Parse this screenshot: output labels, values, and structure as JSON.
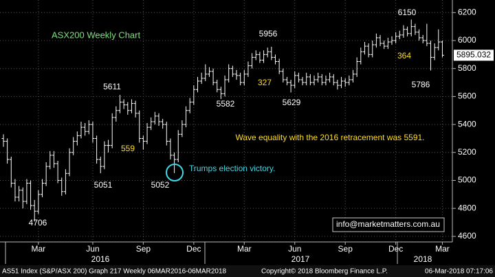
{
  "chart_data": {
    "type": "ohlc",
    "title": "ASX200 Weekly Chart",
    "color": "#ffffff",
    "ylim": [
      4560,
      6290
    ],
    "yticks": [
      4600,
      4800,
      5000,
      5200,
      5400,
      5600,
      5800,
      6000,
      6200
    ],
    "grid": true,
    "categories": [
      null,
      null,
      null,
      null,
      null,
      null,
      null,
      null,
      null,
      "Mar",
      null,
      null,
      null,
      null,
      null,
      null,
      null,
      null,
      null,
      null,
      null,
      null,
      null,
      "Jun",
      null,
      null,
      null,
      null,
      null,
      null,
      null,
      null,
      null,
      null,
      null,
      null,
      "Sep",
      null,
      null,
      null,
      null,
      null,
      null,
      null,
      null,
      null,
      null,
      null,
      null,
      "Dec",
      null,
      null,
      null,
      null,
      null,
      null,
      null,
      null,
      null,
      null,
      null,
      null,
      "Mar",
      null,
      null,
      null,
      null,
      null,
      null,
      null,
      null,
      null,
      null,
      null,
      null,
      "Jun",
      null,
      null,
      null,
      null,
      null,
      null,
      null,
      null,
      null,
      null,
      null,
      null,
      "Sep",
      null,
      null,
      null,
      null,
      null,
      null,
      null,
      null,
      null,
      null,
      null,
      null,
      "Dec",
      null,
      null,
      null,
      null,
      null,
      null,
      null,
      null,
      null,
      null,
      null,
      "Mar"
    ],
    "years": [
      "2016",
      "2017",
      "2018"
    ],
    "ohlc": [
      [
        5300,
        5330,
        5240,
        5280
      ],
      [
        5280,
        5300,
        5120,
        5150
      ],
      [
        5150,
        5170,
        4950,
        4980
      ],
      [
        4980,
        5010,
        4850,
        4880
      ],
      [
        4880,
        4960,
        4850,
        4930
      ],
      [
        4930,
        4950,
        4800,
        4850
      ],
      [
        4850,
        5010,
        4830,
        4980
      ],
      [
        4980,
        5000,
        4790,
        4820
      ],
      [
        4820,
        4860,
        4706,
        4780
      ],
      [
        4780,
        4930,
        4760,
        4900
      ],
      [
        4900,
        5010,
        4880,
        4980
      ],
      [
        4980,
        5130,
        4960,
        5100
      ],
      [
        5100,
        5210,
        5080,
        5180
      ],
      [
        5180,
        5210,
        5090,
        5120
      ],
      [
        5120,
        5140,
        4980,
        5000
      ],
      [
        5000,
        5020,
        4890,
        4920
      ],
      [
        4920,
        5080,
        4900,
        5050
      ],
      [
        5050,
        5230,
        5030,
        5200
      ],
      [
        5200,
        5310,
        5180,
        5280
      ],
      [
        5280,
        5350,
        5250,
        5320
      ],
      [
        5320,
        5420,
        5300,
        5380
      ],
      [
        5380,
        5410,
        5320,
        5350
      ],
      [
        5350,
        5430,
        5330,
        5400
      ],
      [
        5400,
        5420,
        5270,
        5300
      ],
      [
        5300,
        5320,
        5120,
        5150
      ],
      [
        5150,
        5170,
        5051,
        5100
      ],
      [
        5100,
        5280,
        5080,
        5250
      ],
      [
        5250,
        5290,
        5200,
        5250
      ],
      [
        5250,
        5480,
        5230,
        5450
      ],
      [
        5450,
        5530,
        5420,
        5500
      ],
      [
        5500,
        5611,
        5480,
        5560
      ],
      [
        5560,
        5580,
        5510,
        5540
      ],
      [
        5540,
        5560,
        5470,
        5500
      ],
      [
        5500,
        5580,
        5480,
        5550
      ],
      [
        5550,
        5570,
        5450,
        5480
      ],
      [
        5480,
        5500,
        5270,
        5300
      ],
      [
        5300,
        5320,
        5220,
        5280
      ],
      [
        5280,
        5410,
        5260,
        5380
      ],
      [
        5380,
        5450,
        5360,
        5420
      ],
      [
        5420,
        5490,
        5400,
        5460
      ],
      [
        5460,
        5480,
        5390,
        5420
      ],
      [
        5420,
        5440,
        5370,
        5400
      ],
      [
        5400,
        5420,
        5250,
        5280
      ],
      [
        5280,
        5300,
        5150,
        5180
      ],
      [
        5180,
        5200,
        5052,
        5150
      ],
      [
        5150,
        5360,
        5130,
        5330
      ],
      [
        5330,
        5430,
        5310,
        5400
      ],
      [
        5400,
        5530,
        5380,
        5500
      ],
      [
        5500,
        5590,
        5480,
        5560
      ],
      [
        5560,
        5680,
        5540,
        5650
      ],
      [
        5650,
        5740,
        5630,
        5710
      ],
      [
        5710,
        5770,
        5690,
        5730
      ],
      [
        5730,
        5830,
        5710,
        5760
      ],
      [
        5760,
        5810,
        5740,
        5780
      ],
      [
        5780,
        5800,
        5680,
        5700
      ],
      [
        5700,
        5720,
        5630,
        5650
      ],
      [
        5650,
        5670,
        5582,
        5620
      ],
      [
        5620,
        5750,
        5600,
        5720
      ],
      [
        5720,
        5830,
        5700,
        5800
      ],
      [
        5800,
        5820,
        5740,
        5760
      ],
      [
        5760,
        5790,
        5720,
        5750
      ],
      [
        5750,
        5770,
        5680,
        5700
      ],
      [
        5700,
        5790,
        5680,
        5760
      ],
      [
        5760,
        5850,
        5740,
        5820
      ],
      [
        5820,
        5910,
        5800,
        5880
      ],
      [
        5880,
        5930,
        5860,
        5900
      ],
      [
        5900,
        5920,
        5840,
        5860
      ],
      [
        5860,
        5930,
        5840,
        5900
      ],
      [
        5900,
        5950,
        5880,
        5920
      ],
      [
        5920,
        5956,
        5860,
        5880
      ],
      [
        5880,
        5900,
        5830,
        5850
      ],
      [
        5850,
        5870,
        5760,
        5780
      ],
      [
        5780,
        5800,
        5700,
        5720
      ],
      [
        5720,
        5740,
        5680,
        5700
      ],
      [
        5700,
        5720,
        5629,
        5680
      ],
      [
        5680,
        5780,
        5660,
        5750
      ],
      [
        5750,
        5770,
        5700,
        5720
      ],
      [
        5720,
        5740,
        5680,
        5700
      ],
      [
        5700,
        5770,
        5680,
        5740
      ],
      [
        5740,
        5760,
        5680,
        5700
      ],
      [
        5700,
        5750,
        5680,
        5720
      ],
      [
        5720,
        5770,
        5700,
        5740
      ],
      [
        5740,
        5760,
        5680,
        5700
      ],
      [
        5700,
        5750,
        5680,
        5720
      ],
      [
        5720,
        5770,
        5700,
        5740
      ],
      [
        5740,
        5760,
        5680,
        5700
      ],
      [
        5700,
        5720,
        5650,
        5680
      ],
      [
        5680,
        5740,
        5660,
        5710
      ],
      [
        5710,
        5730,
        5670,
        5700
      ],
      [
        5700,
        5750,
        5680,
        5720
      ],
      [
        5720,
        5790,
        5700,
        5760
      ],
      [
        5760,
        5880,
        5740,
        5850
      ],
      [
        5850,
        5950,
        5830,
        5920
      ],
      [
        5920,
        5990,
        5900,
        5960
      ],
      [
        5960,
        5980,
        5880,
        5900
      ],
      [
        5900,
        6000,
        5880,
        5970
      ],
      [
        5970,
        6050,
        5950,
        6020
      ],
      [
        6020,
        6040,
        5960,
        5980
      ],
      [
        5980,
        6000,
        5940,
        5960
      ],
      [
        5960,
        6020,
        5940,
        5990
      ],
      [
        5990,
        6030,
        5970,
        6000
      ],
      [
        6000,
        6060,
        5980,
        6030
      ],
      [
        6030,
        6070,
        6010,
        6040
      ],
      [
        6040,
        6110,
        6020,
        6080
      ],
      [
        6080,
        6100,
        6030,
        6050
      ],
      [
        6050,
        6150,
        6030,
        6100
      ],
      [
        6100,
        6120,
        6040,
        6060
      ],
      [
        6060,
        6080,
        6000,
        6020
      ],
      [
        6020,
        6040,
        5980,
        6000
      ],
      [
        6000,
        6120,
        5960,
        5980
      ],
      [
        5980,
        6000,
        5786,
        5880
      ],
      [
        5880,
        5980,
        5860,
        5950
      ],
      [
        5950,
        6080,
        5930,
        5990
      ],
      [
        5990,
        6000,
        5880,
        5895.032
      ]
    ],
    "annotations": [
      "6150",
      "5956",
      "5611",
      "5582",
      "5629",
      "5051",
      "5052",
      "4706",
      "5786",
      "559",
      "327",
      "364",
      "Wave equality with the 2016 retracement was 5591.",
      "Trumps election victory.",
      "info@marketmatters.com.au"
    ],
    "footer": [
      "AS51 Index (S&P/ASX 200) Graph 217  Weekly 06MAR2016-06MAR2018",
      "Copyright© 2018 Bloomberg Finance L.P.",
      "06-Mar-2018 07:17:06"
    ]
  }
}
